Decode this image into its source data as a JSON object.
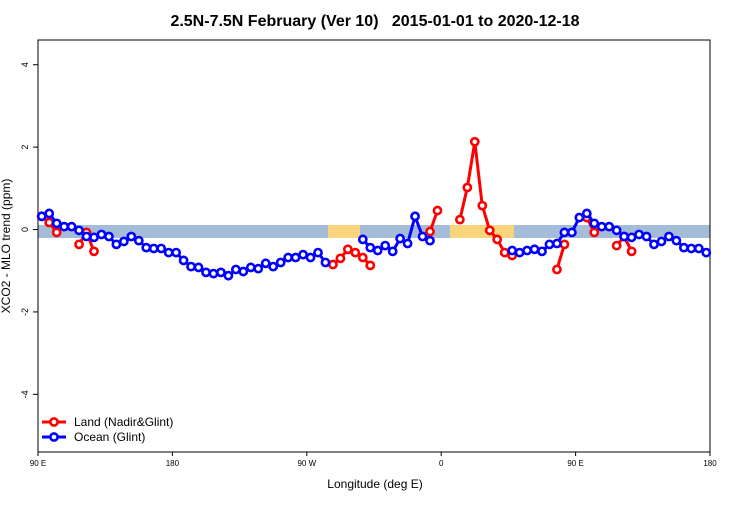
{
  "chart_data": {
    "type": "line",
    "title": "2.5N-7.5N February (Ver 10)   2015-01-01 to 2020-12-18",
    "x_label": "Longitude (deg E)",
    "y_label": "XCO2 - MLO trend (ppm)",
    "x": [
      92.5,
      97.5,
      102.5,
      107.5,
      112.5,
      117.5,
      122.5,
      127.5,
      132.5,
      137.5,
      142.5,
      147.5,
      152.5,
      157.5,
      162.5,
      167.5,
      172.5,
      177.5,
      182.5,
      187.5,
      192.5,
      197.5,
      202.5,
      207.5,
      212.5,
      217.5,
      222.5,
      227.5,
      232.5,
      237.5,
      242.5,
      247.5,
      252.5,
      257.5,
      262.5,
      267.5,
      272.5,
      277.5,
      282.5,
      287.5,
      292.5,
      297.5,
      302.5,
      307.5,
      312.5,
      317.5,
      322.5,
      327.5,
      332.5,
      337.5,
      342.5,
      347.5,
      352.5,
      357.5,
      362.5,
      367.5,
      372.5,
      377.5,
      382.5,
      387.5,
      392.5,
      397.5,
      402.5,
      407.5,
      412.5,
      417.5,
      422.5,
      427.5,
      432.5,
      437.5,
      442.5,
      447.5,
      452.5,
      457.5,
      462.5,
      467.5,
      472.5,
      477.5,
      482.5,
      487.5,
      492.5,
      497.5,
      502.5,
      507.5,
      512.5,
      517.5,
      522.5,
      527.5,
      532.5,
      537.5
    ],
    "series": [
      {
        "name": "Land (Nadir&Glint)",
        "color": "#ff0000",
        "values": [
          0.32,
          0.17,
          -0.07,
          null,
          null,
          -0.36,
          -0.07,
          -0.53,
          null,
          null,
          null,
          null,
          null,
          null,
          null,
          null,
          null,
          null,
          null,
          null,
          null,
          null,
          null,
          null,
          null,
          null,
          null,
          null,
          null,
          null,
          null,
          null,
          null,
          null,
          null,
          null,
          null,
          null,
          null,
          -0.85,
          -0.7,
          -0.48,
          -0.56,
          -0.68,
          -0.87,
          null,
          null,
          null,
          null,
          null,
          null,
          null,
          -0.05,
          0.46,
          null,
          null,
          0.24,
          1.02,
          2.13,
          0.58,
          -0.02,
          -0.24,
          -0.56,
          -0.63,
          null,
          null,
          null,
          null,
          null,
          -0.97,
          -0.36,
          null,
          null,
          0.29,
          -0.07,
          null,
          null,
          -0.39,
          -0.17,
          -0.53,
          null,
          null,
          null,
          null,
          null,
          null,
          null,
          null,
          null,
          null
        ]
      },
      {
        "name": "Ocean (Glint)",
        "color": "#0000ff",
        "values": [
          0.32,
          0.39,
          0.15,
          0.07,
          0.07,
          -0.02,
          -0.17,
          -0.19,
          -0.12,
          -0.17,
          -0.36,
          -0.29,
          -0.17,
          -0.27,
          -0.44,
          -0.46,
          -0.46,
          -0.56,
          -0.56,
          -0.75,
          -0.9,
          -0.92,
          -1.04,
          -1.07,
          -1.04,
          -1.12,
          -0.97,
          -1.02,
          -0.92,
          -0.95,
          -0.82,
          -0.9,
          -0.8,
          -0.68,
          -0.68,
          -0.61,
          -0.68,
          -0.56,
          -0.8,
          null,
          null,
          null,
          null,
          -0.24,
          -0.44,
          -0.51,
          -0.39,
          -0.53,
          -0.22,
          -0.34,
          0.32,
          -0.17,
          -0.27,
          null,
          null,
          null,
          null,
          null,
          null,
          null,
          null,
          null,
          null,
          -0.51,
          -0.56,
          -0.51,
          -0.48,
          -0.53,
          -0.36,
          -0.34,
          -0.07,
          -0.07,
          0.29,
          0.39,
          0.15,
          0.07,
          0.07,
          -0.02,
          -0.17,
          -0.19,
          -0.12,
          -0.17,
          -0.36,
          -0.29,
          -0.17,
          -0.27,
          -0.44,
          -0.46,
          -0.46,
          -0.56
        ]
      }
    ],
    "xlim": [
      90,
      540
    ],
    "xticks": [
      {
        "value": 90,
        "label": "90 E"
      },
      180,
      {
        "value": 270,
        "label": "90 W"
      },
      {
        "value": 360,
        "label": "0"
      },
      {
        "value": 450,
        "label": "90 E"
      },
      180
    ],
    "ylim": [
      -5.4,
      4.6
    ],
    "yticks": [
      -4,
      -2,
      0,
      2,
      4
    ],
    "legend": "bottom-left"
  }
}
